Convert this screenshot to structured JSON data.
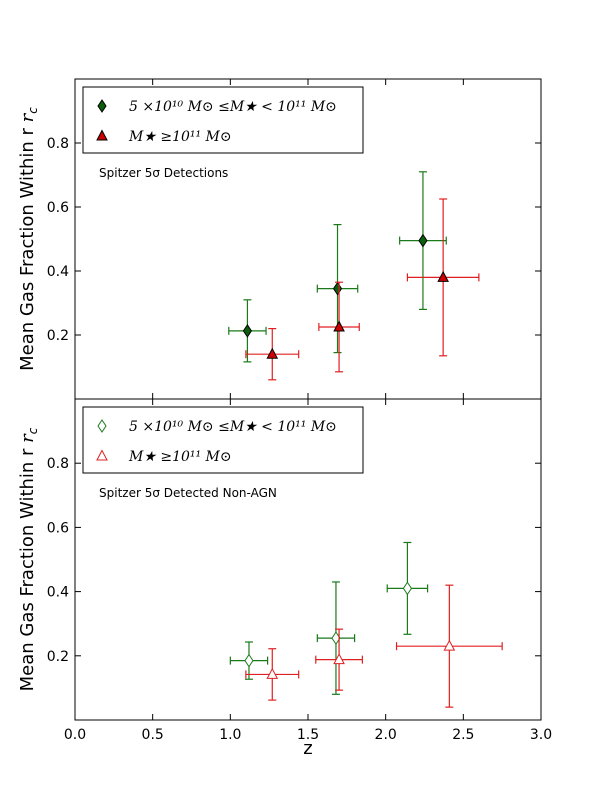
{
  "chart_data": [
    {
      "type": "scatter",
      "panel": "top",
      "title": "",
      "ylabel": "Mean Gas Fraction Within r",
      "ylabel_sub": "c",
      "xlabel": "",
      "xlim": [
        0.0,
        3.0
      ],
      "ylim": [
        0.0,
        1.0
      ],
      "yticks": [
        0.2,
        0.4,
        0.6,
        0.8
      ],
      "ytick_labels": [
        "0.2",
        "0.4",
        "0.6",
        "0.8"
      ],
      "annotation": "Spitzer 5σ Detections",
      "legend_position": "top-left",
      "series": [
        {
          "name": "5×10^10 M⊙ ≤M★ < 10^11 M⊙",
          "legend_label": "5 ×10¹⁰  M⊙  ≤M★ < 10¹¹  M⊙",
          "color": "#1a7a1a",
          "fill": "#0b5e0b",
          "marker": "diamond",
          "points": [
            {
              "x": 1.11,
              "y": 0.213,
              "xerr": [
                0.12,
                0.12
              ],
              "yerr": [
                0.097,
                0.097
              ]
            },
            {
              "x": 1.69,
              "y": 0.345,
              "xerr": [
                0.13,
                0.13
              ],
              "yerr": [
                0.2,
                0.2
              ]
            },
            {
              "x": 2.24,
              "y": 0.495,
              "xerr": [
                0.15,
                0.15
              ],
              "yerr": [
                0.215,
                0.215
              ]
            }
          ]
        },
        {
          "name": "M★ ≥10^11 M⊙",
          "legend_label": "M★ ≥10¹¹  M⊙",
          "color": "#e02020",
          "fill": "#cc0000",
          "marker": "triangle",
          "points": [
            {
              "x": 1.27,
              "y": 0.14,
              "xerr": [
                0.17,
                0.17
              ],
              "yerr": [
                0.08,
                0.08
              ]
            },
            {
              "x": 1.7,
              "y": 0.225,
              "xerr": [
                0.13,
                0.13
              ],
              "yerr": [
                0.14,
                0.14
              ]
            },
            {
              "x": 2.37,
              "y": 0.38,
              "xerr": [
                0.23,
                0.23
              ],
              "yerr": [
                0.245,
                0.245
              ]
            }
          ]
        }
      ]
    },
    {
      "type": "scatter",
      "panel": "bottom",
      "title": "",
      "ylabel": "Mean Gas Fraction Within r",
      "ylabel_sub": "c",
      "xlabel": "z",
      "xlim": [
        0.0,
        3.0
      ],
      "ylim": [
        0.0,
        1.0
      ],
      "xticks": [
        0.0,
        0.5,
        1.0,
        1.5,
        2.0,
        2.5,
        3.0
      ],
      "xtick_labels": [
        "0.0",
        "0.5",
        "1.0",
        "1.5",
        "2.0",
        "2.5",
        "3.0"
      ],
      "yticks": [
        0.2,
        0.4,
        0.6,
        0.8
      ],
      "ytick_labels": [
        "0.2",
        "0.4",
        "0.6",
        "0.8"
      ],
      "annotation": "Spitzer 5σ Detected Non-AGN",
      "legend_position": "top-left",
      "series": [
        {
          "name": "5×10^10 M⊙ ≤M★ < 10^11 M⊙",
          "legend_label": "5 ×10¹⁰  M⊙  ≤M★ < 10¹¹  M⊙",
          "color": "#1a7a1a",
          "fill": "#ffffff",
          "marker": "diamond",
          "points": [
            {
              "x": 1.12,
              "y": 0.185,
              "xerr": [
                0.12,
                0.12
              ],
              "yerr": [
                0.058,
                0.058
              ]
            },
            {
              "x": 1.68,
              "y": 0.255,
              "xerr": [
                0.12,
                0.12
              ],
              "yerr": [
                0.175,
                0.175
              ]
            },
            {
              "x": 2.14,
              "y": 0.41,
              "xerr": [
                0.13,
                0.13
              ],
              "yerr": [
                0.143,
                0.143
              ]
            }
          ]
        },
        {
          "name": "M★ ≥10^11 M⊙",
          "legend_label": "M★ ≥10¹¹  M⊙",
          "color": "#e02020",
          "fill": "#ffffff",
          "marker": "triangle",
          "points": [
            {
              "x": 1.27,
              "y": 0.142,
              "xerr": [
                0.17,
                0.17
              ],
              "yerr": [
                0.08,
                0.08
              ]
            },
            {
              "x": 1.7,
              "y": 0.188,
              "xerr": [
                0.15,
                0.15
              ],
              "yerr": [
                0.095,
                0.095
              ]
            },
            {
              "x": 2.41,
              "y": 0.23,
              "xerr": [
                0.34,
                0.34
              ],
              "yerr": [
                0.19,
                0.19
              ]
            }
          ]
        }
      ]
    }
  ]
}
